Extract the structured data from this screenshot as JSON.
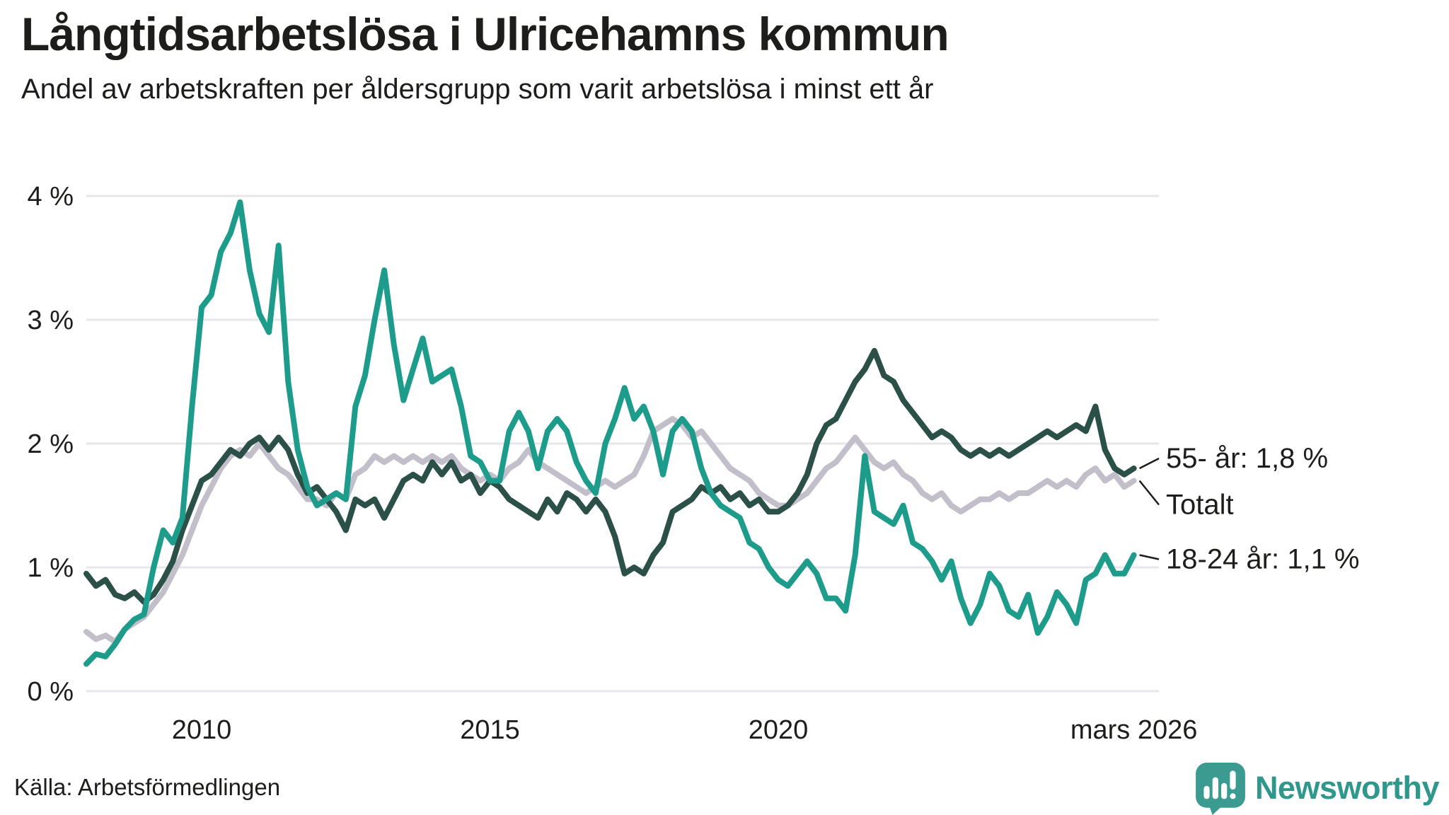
{
  "header": {
    "title": "Långtidsarbetslösa i Ulricehamns kommun",
    "subtitle": "Andel av arbetskraften per åldersgrupp som varit arbetslösa i minst ett år"
  },
  "chart_data": {
    "type": "line",
    "title": "Långtidsarbetslösa i Ulricehamns kommun",
    "subtitle": "Andel av arbetskraften per åldersgrupp som varit arbetslösa i minst ett år",
    "x_unit": "year",
    "x_start": 2008.0,
    "x_step": 0.166667,
    "x_end": 2026.1667,
    "ylim": [
      0,
      4
    ],
    "grid": "horizontal",
    "yticks": [
      {
        "v": 0,
        "label": "0 %"
      },
      {
        "v": 1,
        "label": "1 %"
      },
      {
        "v": 2,
        "label": "2 %"
      },
      {
        "v": 3,
        "label": "3 %"
      },
      {
        "v": 4,
        "label": "4 %"
      }
    ],
    "xticks": [
      {
        "x": 2010,
        "label": "2010"
      },
      {
        "x": 2015,
        "label": "2015"
      },
      {
        "x": 2020,
        "label": "2020"
      },
      {
        "x": 2026.1667,
        "label": "mars 2026"
      }
    ],
    "series": [
      {
        "name": "Totalt",
        "color": "#c3bfca",
        "end_label": "Totalt",
        "values": [
          0.48,
          0.42,
          0.45,
          0.4,
          0.5,
          0.55,
          0.6,
          0.7,
          0.8,
          0.95,
          1.1,
          1.3,
          1.5,
          1.65,
          1.8,
          1.9,
          1.95,
          1.9,
          2.0,
          1.9,
          1.8,
          1.75,
          1.65,
          1.55,
          1.55,
          1.5,
          1.6,
          1.55,
          1.75,
          1.8,
          1.9,
          1.85,
          1.9,
          1.85,
          1.9,
          1.85,
          1.9,
          1.85,
          1.9,
          1.8,
          1.75,
          1.7,
          1.75,
          1.7,
          1.8,
          1.85,
          1.95,
          1.85,
          1.8,
          1.75,
          1.7,
          1.65,
          1.6,
          1.65,
          1.7,
          1.65,
          1.7,
          1.75,
          1.9,
          2.1,
          2.15,
          2.2,
          2.15,
          2.05,
          2.1,
          2.0,
          1.9,
          1.8,
          1.75,
          1.7,
          1.6,
          1.55,
          1.5,
          1.5,
          1.55,
          1.6,
          1.7,
          1.8,
          1.85,
          1.95,
          2.05,
          1.95,
          1.85,
          1.8,
          1.85,
          1.75,
          1.7,
          1.6,
          1.55,
          1.6,
          1.5,
          1.45,
          1.5,
          1.55,
          1.55,
          1.6,
          1.55,
          1.6,
          1.6,
          1.65,
          1.7,
          1.65,
          1.7,
          1.65,
          1.75,
          1.8,
          1.7,
          1.75,
          1.65,
          1.7
        ]
      },
      {
        "name": "55- år",
        "color": "#2a5048",
        "end_label": "55- år: 1,8 %",
        "values": [
          0.95,
          0.85,
          0.9,
          0.78,
          0.75,
          0.8,
          0.72,
          0.78,
          0.9,
          1.05,
          1.3,
          1.5,
          1.7,
          1.75,
          1.85,
          1.95,
          1.9,
          2.0,
          2.05,
          1.95,
          2.05,
          1.95,
          1.75,
          1.6,
          1.65,
          1.55,
          1.45,
          1.3,
          1.55,
          1.5,
          1.55,
          1.4,
          1.55,
          1.7,
          1.75,
          1.7,
          1.85,
          1.75,
          1.85,
          1.7,
          1.75,
          1.6,
          1.7,
          1.65,
          1.55,
          1.5,
          1.45,
          1.4,
          1.55,
          1.45,
          1.6,
          1.55,
          1.45,
          1.55,
          1.45,
          1.25,
          0.95,
          1.0,
          0.95,
          1.1,
          1.2,
          1.45,
          1.5,
          1.55,
          1.65,
          1.6,
          1.65,
          1.55,
          1.6,
          1.5,
          1.55,
          1.45,
          1.45,
          1.5,
          1.6,
          1.75,
          2.0,
          2.15,
          2.2,
          2.35,
          2.5,
          2.6,
          2.75,
          2.55,
          2.5,
          2.35,
          2.25,
          2.15,
          2.05,
          2.1,
          2.05,
          1.95,
          1.9,
          1.95,
          1.9,
          1.95,
          1.9,
          1.95,
          2.0,
          2.05,
          2.1,
          2.05,
          2.1,
          2.15,
          2.1,
          2.3,
          1.95,
          1.8,
          1.75,
          1.8
        ]
      },
      {
        "name": "18-24 år",
        "color": "#1d9c8b",
        "end_label": "18-24 år: 1,1 %",
        "values": [
          0.22,
          0.3,
          0.28,
          0.38,
          0.5,
          0.58,
          0.62,
          1.0,
          1.3,
          1.2,
          1.4,
          2.3,
          3.1,
          3.2,
          3.55,
          3.7,
          3.95,
          3.4,
          3.05,
          2.9,
          3.6,
          2.5,
          1.95,
          1.65,
          1.5,
          1.55,
          1.6,
          1.55,
          2.3,
          2.55,
          3.0,
          3.4,
          2.8,
          2.35,
          2.6,
          2.85,
          2.5,
          2.55,
          2.6,
          2.3,
          1.9,
          1.85,
          1.7,
          1.7,
          2.1,
          2.25,
          2.1,
          1.8,
          2.1,
          2.2,
          2.1,
          1.85,
          1.7,
          1.6,
          2.0,
          2.2,
          2.45,
          2.2,
          2.3,
          2.1,
          1.75,
          2.1,
          2.2,
          2.1,
          1.8,
          1.6,
          1.5,
          1.45,
          1.4,
          1.2,
          1.15,
          1.0,
          0.9,
          0.85,
          0.95,
          1.05,
          0.95,
          0.75,
          0.75,
          0.65,
          1.1,
          1.9,
          1.45,
          1.4,
          1.35,
          1.5,
          1.2,
          1.15,
          1.05,
          0.9,
          1.05,
          0.75,
          0.55,
          0.7,
          0.95,
          0.85,
          0.65,
          0.6,
          0.78,
          0.47,
          0.6,
          0.8,
          0.7,
          0.55,
          0.9,
          0.95,
          1.1,
          0.95,
          0.95,
          1.1
        ]
      }
    ]
  },
  "footer": {
    "source": "Källa: Arbetsförmedlingen",
    "brand": "Newsworthy"
  },
  "colors": {
    "background": "#ffffff",
    "text": "#1d1d1b",
    "grid": "#e7e6ea",
    "series_total": "#c3bfca",
    "series_55plus": "#2a5048",
    "series_18_24": "#1d9c8b",
    "brand_teal": "#2f978c",
    "logo_teal": "#3b9b90"
  }
}
